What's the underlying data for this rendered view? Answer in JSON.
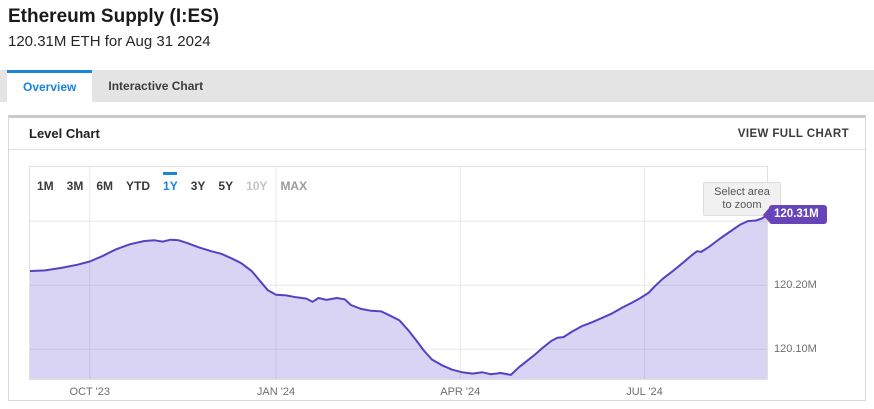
{
  "page": {
    "title": "Ethereum Supply (I:ES)",
    "subtitle": "120.31M ETH for Aug 31 2024"
  },
  "tabs": [
    {
      "label": "Overview",
      "active": true
    },
    {
      "label": "Interactive Chart",
      "active": false
    }
  ],
  "panel": {
    "title": "Level Chart",
    "view_full_chart_label": "VIEW FULL CHART"
  },
  "range_selector": {
    "buttons": [
      {
        "label": "1M",
        "state": "normal"
      },
      {
        "label": "3M",
        "state": "normal"
      },
      {
        "label": "6M",
        "state": "normal"
      },
      {
        "label": "YTD",
        "state": "normal"
      },
      {
        "label": "1Y",
        "state": "active"
      },
      {
        "label": "3Y",
        "state": "normal"
      },
      {
        "label": "5Y",
        "state": "normal"
      },
      {
        "label": "10Y",
        "state": "disabled"
      },
      {
        "label": "MAX",
        "state": "muted"
      }
    ]
  },
  "zoom_hint": {
    "line1": "Select area",
    "line2": "to zoom"
  },
  "colors": {
    "accent_blue": "#1a85d9",
    "line": "#5243c2",
    "area_fill": "rgba(103,84,208,0.25)",
    "badge_bg": "#6745b8",
    "gridline": "#e8e8e8",
    "plot_border": "#e0e0e0"
  },
  "chart_data": {
    "type": "area",
    "title": "Level Chart",
    "series_name": "Ethereum Supply",
    "unit": "M ETH",
    "x_axis_labels": [
      "OCT '23",
      "JAN '24",
      "APR '24",
      "JUL '24"
    ],
    "x_gridline_days": [
      30,
      122,
      213,
      304
    ],
    "x_range_days": 365,
    "x_start": "Sep 1 2023",
    "x_end": "Aug 31 2024",
    "y_axis_labels": [
      "120.20M",
      "120.10M"
    ],
    "y_axis_label_values": [
      120.2,
      120.1
    ],
    "y_gridline_values": [
      120.3,
      120.2,
      120.1
    ],
    "ylim": [
      120.052,
      120.386
    ],
    "grid": true,
    "legend": false,
    "last_point": {
      "date": "Aug 31 2024",
      "value": 120.31,
      "value_label": "120.31M"
    },
    "points": [
      [
        0,
        120.222
      ],
      [
        8,
        120.223
      ],
      [
        16,
        120.227
      ],
      [
        24,
        120.232
      ],
      [
        30,
        120.237
      ],
      [
        36,
        120.245
      ],
      [
        43,
        120.256
      ],
      [
        50,
        120.264
      ],
      [
        57,
        120.269
      ],
      [
        62,
        120.27
      ],
      [
        66,
        120.268
      ],
      [
        70,
        120.271
      ],
      [
        74,
        120.27
      ],
      [
        78,
        120.266
      ],
      [
        84,
        120.259
      ],
      [
        90,
        120.253
      ],
      [
        95,
        120.249
      ],
      [
        100,
        120.242
      ],
      [
        105,
        120.234
      ],
      [
        110,
        120.222
      ],
      [
        114,
        120.207
      ],
      [
        118,
        120.192
      ],
      [
        122,
        120.185
      ],
      [
        127,
        120.184
      ],
      [
        132,
        120.181
      ],
      [
        137,
        120.179
      ],
      [
        140,
        120.174
      ],
      [
        143,
        120.18
      ],
      [
        147,
        120.177
      ],
      [
        152,
        120.18
      ],
      [
        156,
        120.178
      ],
      [
        159,
        120.169
      ],
      [
        164,
        120.163
      ],
      [
        169,
        120.16
      ],
      [
        174,
        120.159
      ],
      [
        178,
        120.153
      ],
      [
        183,
        120.145
      ],
      [
        187,
        120.131
      ],
      [
        191,
        120.115
      ],
      [
        195,
        120.098
      ],
      [
        199,
        120.084
      ],
      [
        204,
        120.075
      ],
      [
        209,
        120.068
      ],
      [
        214,
        120.064
      ],
      [
        219,
        120.062
      ],
      [
        224,
        120.064
      ],
      [
        228,
        120.061
      ],
      [
        233,
        120.063
      ],
      [
        238,
        120.06
      ],
      [
        242,
        120.072
      ],
      [
        246,
        120.082
      ],
      [
        250,
        120.092
      ],
      [
        254,
        120.103
      ],
      [
        258,
        120.113
      ],
      [
        261,
        120.118
      ],
      [
        264,
        120.119
      ],
      [
        268,
        120.127
      ],
      [
        273,
        120.136
      ],
      [
        278,
        120.142
      ],
      [
        283,
        120.149
      ],
      [
        288,
        120.156
      ],
      [
        293,
        120.165
      ],
      [
        298,
        120.173
      ],
      [
        302,
        120.18
      ],
      [
        306,
        120.188
      ],
      [
        309,
        120.198
      ],
      [
        313,
        120.21
      ],
      [
        318,
        120.222
      ],
      [
        323,
        120.235
      ],
      [
        327,
        120.246
      ],
      [
        330,
        120.253
      ],
      [
        332,
        120.252
      ],
      [
        336,
        120.26
      ],
      [
        341,
        120.272
      ],
      [
        346,
        120.283
      ],
      [
        351,
        120.294
      ],
      [
        355,
        120.3
      ],
      [
        359,
        120.301
      ],
      [
        362,
        120.304
      ],
      [
        365,
        120.31
      ]
    ]
  }
}
